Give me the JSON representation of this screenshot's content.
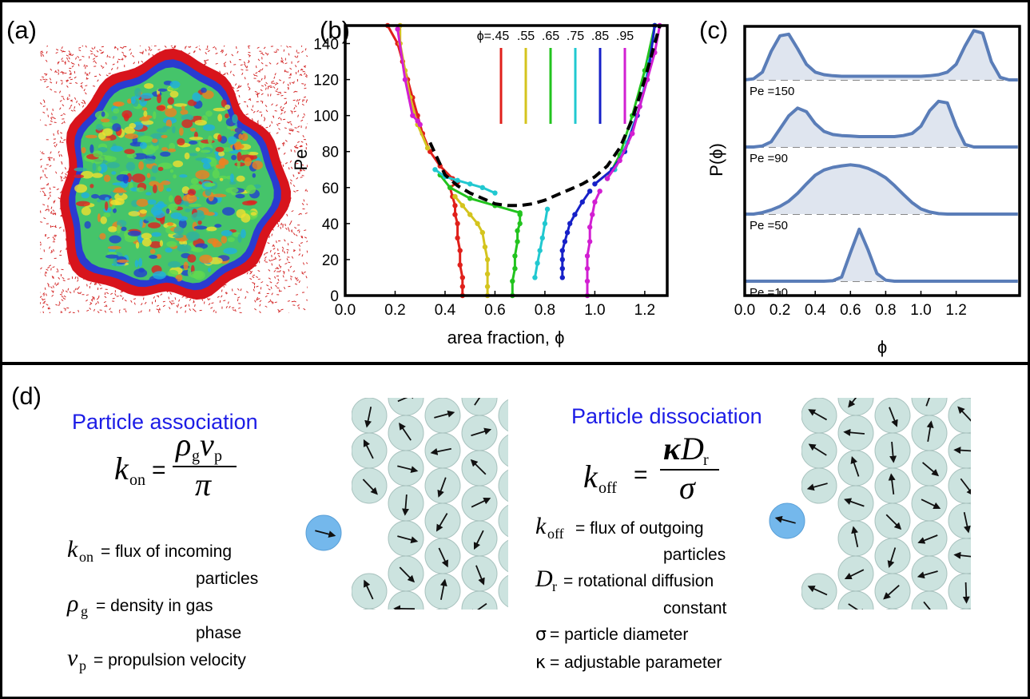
{
  "panels": {
    "a": {
      "label": "(a)"
    },
    "d": {
      "label": "(d)"
    }
  },
  "chart_data": [
    {
      "type": "line",
      "title": "(b)",
      "xlabel": "area fraction, ϕ",
      "ylabel": "Pe",
      "xlim": [
        0,
        1.29
      ],
      "ylim": [
        0,
        150
      ],
      "xticks": [
        {
          "value": 0,
          "label": "0.0"
        },
        0.2,
        0.4,
        0.6,
        0.8,
        {
          "value": 1,
          "label": "1.0"
        },
        1.2
      ],
      "yticks": [
        0,
        20,
        40,
        60,
        80,
        100,
        120,
        140
      ],
      "series": [
        {
          "name": "ϕ=.45",
          "color": "#e0201b",
          "x": [
            0.47,
            0.47,
            0.47,
            0.46,
            0.46,
            0.45,
            0.45,
            0.44,
            0.44,
            0.43,
            0.42,
            0.45,
            null,
            0.17,
            0.21,
            0.23,
            0.25,
            0.27,
            0.29,
            0.31,
            0.34,
            0.38,
            0.43
          ],
          "values": [
            0,
            5,
            10,
            17,
            25,
            32,
            40,
            45,
            50,
            55,
            60,
            63,
            null,
            150,
            140,
            130,
            120,
            110,
            100,
            90,
            80,
            72,
            65
          ]
        },
        {
          "name": ".55",
          "color": "#d4c41e",
          "x": [
            0.57,
            0.57,
            0.57,
            0.57,
            0.56,
            0.55,
            0.53,
            0.5,
            0.47,
            0.44,
            null,
            0.22,
            0.22,
            0.24,
            0.26,
            0.29,
            0.33
          ],
          "values": [
            0,
            5,
            12,
            20,
            27,
            35,
            40,
            45,
            50,
            55,
            null,
            150,
            140,
            125,
            110,
            95,
            82
          ]
        },
        {
          "name": ".65",
          "color": "#22c31e",
          "x": [
            0.67,
            0.67,
            0.68,
            0.68,
            0.69,
            0.69,
            0.7,
            0.7,
            0.7,
            0.6,
            0.5,
            0.42,
            0.38,
            null,
            1.05,
            1.1,
            1.15,
            1.2,
            1.24
          ],
          "values": [
            0,
            8,
            15,
            22,
            30,
            36,
            40,
            45,
            46,
            50,
            54,
            60,
            67,
            null,
            65,
            78,
            100,
            125,
            150
          ]
        },
        {
          "name": ".75",
          "color": "#21c8d0",
          "x": [
            0.76,
            0.77,
            0.78,
            0.79,
            0.8,
            0.81,
            null,
            0.6,
            0.55,
            0.5,
            0.45,
            0.4,
            0.36,
            null,
            1.08,
            1.13,
            1.18,
            1.22,
            1.24
          ],
          "values": [
            10,
            18,
            25,
            32,
            40,
            48,
            null,
            57,
            60,
            62,
            64,
            66,
            70,
            null,
            70,
            85,
            105,
            130,
            150
          ]
        },
        {
          "name": ".85",
          "color": "#1620c8",
          "x": [
            0.87,
            0.87,
            0.87,
            0.87,
            0.88,
            0.89,
            0.9,
            0.92,
            0.95,
            0.98,
            null,
            1.0,
            1.07,
            1.12,
            1.17,
            1.21,
            1.24
          ],
          "values": [
            10,
            15,
            20,
            25,
            30,
            35,
            40,
            45,
            52,
            58,
            null,
            62,
            70,
            80,
            100,
            120,
            150
          ]
        },
        {
          "name": ".95",
          "color": "#d21fd2",
          "x": [
            0.97,
            0.97,
            0.97,
            0.97,
            0.98,
            0.98,
            0.99,
            1.0,
            1.02,
            null,
            1.05,
            1.1,
            1.15,
            1.18,
            1.21,
            1.24,
            1.26,
            null,
            0.21,
            0.24,
            0.27,
            0.29,
            0.3
          ],
          "values": [
            0,
            8,
            15,
            22,
            30,
            38,
            45,
            52,
            58,
            null,
            65,
            75,
            90,
            105,
            120,
            135,
            150,
            null,
            148,
            120,
            100,
            97,
            95
          ]
        }
      ],
      "dashed_curve": {
        "color": "#000000",
        "x": [
          0.34,
          0.4,
          0.45,
          0.5,
          0.55,
          0.6,
          0.65,
          0.7,
          0.75,
          0.8,
          0.85,
          0.9,
          0.95,
          1.0,
          1.05,
          1.1,
          1.15,
          1.2,
          1.24,
          1.26
        ],
        "values": [
          85,
          67,
          61,
          57,
          54,
          51,
          50,
          50,
          51,
          53,
          56,
          59,
          62,
          66,
          72,
          82,
          98,
          120,
          140,
          150
        ]
      }
    },
    {
      "type": "area",
      "title": "(c)",
      "xlabel": "ϕ",
      "ylabel": "P(ϕ)",
      "color": "#5a7db8",
      "fill": "#dfe5ef",
      "xlim": [
        0,
        1.56
      ],
      "xticks": [
        {
          "value": 0,
          "label": "0.0"
        },
        0.2,
        0.4,
        0.6,
        0.8,
        {
          "value": 1,
          "label": "1.0"
        },
        1.2
      ],
      "x": [
        0,
        0.05,
        0.1,
        0.15,
        0.2,
        0.25,
        0.3,
        0.35,
        0.4,
        0.45,
        0.5,
        0.55,
        0.6,
        0.65,
        0.7,
        0.75,
        0.8,
        0.85,
        0.9,
        0.95,
        1.0,
        1.05,
        1.1,
        1.15,
        1.2,
        1.25,
        1.3,
        1.35,
        1.4,
        1.45,
        1.5,
        1.55
      ],
      "series": [
        {
          "name": "Pe =150",
          "values": [
            0,
            0.02,
            0.15,
            0.55,
            0.85,
            0.88,
            0.6,
            0.3,
            0.15,
            0.1,
            0.08,
            0.07,
            0.07,
            0.07,
            0.07,
            0.07,
            0.07,
            0.07,
            0.07,
            0.07,
            0.07,
            0.08,
            0.1,
            0.15,
            0.3,
            0.65,
            0.95,
            0.9,
            0.35,
            0.05,
            0,
            0
          ]
        },
        {
          "name": "Pe =90",
          "values": [
            0,
            0,
            0.02,
            0.1,
            0.35,
            0.6,
            0.75,
            0.68,
            0.45,
            0.3,
            0.24,
            0.22,
            0.21,
            0.2,
            0.2,
            0.2,
            0.2,
            0.2,
            0.22,
            0.26,
            0.4,
            0.7,
            0.88,
            0.85,
            0.4,
            0.05,
            0,
            0,
            0,
            0,
            0,
            0
          ]
        },
        {
          "name": "Pe =50",
          "values": [
            0,
            0,
            0.03,
            0.08,
            0.15,
            0.25,
            0.4,
            0.58,
            0.75,
            0.85,
            0.9,
            0.93,
            0.95,
            0.93,
            0.88,
            0.8,
            0.7,
            0.55,
            0.38,
            0.22,
            0.1,
            0.04,
            0.01,
            0,
            0,
            0,
            0,
            0,
            0,
            0,
            0,
            0
          ]
        },
        {
          "name": "Pe =10",
          "values": [
            0,
            0,
            0,
            0,
            0,
            0,
            0,
            0,
            0,
            0,
            0.01,
            0.08,
            0.55,
            1.0,
            0.6,
            0.15,
            0.02,
            0,
            0,
            0,
            0,
            0,
            0,
            0,
            0,
            0,
            0,
            0,
            0,
            0,
            0,
            0
          ]
        }
      ]
    }
  ],
  "panel_d": {
    "association": {
      "title": "Particle association",
      "formula": {
        "lhs": "k",
        "lhs_sub": "on",
        "eq": "=",
        "num": [
          {
            "sym": "ρ",
            "sub": "g"
          },
          {
            "sym": "v",
            "sub": "p"
          }
        ],
        "den": "π"
      },
      "definitions": [
        {
          "sym": "k",
          "sub": "on",
          "text": "= flux of incoming",
          "cont": "particles"
        },
        {
          "sym": "ρ",
          "sub": "g",
          "text": "= density in gas",
          "cont": "phase"
        },
        {
          "sym": "v",
          "sub": "p",
          "text": "= propulsion velocity"
        }
      ]
    },
    "dissociation": {
      "title": "Particle dissociation",
      "formula": {
        "lhs": "k",
        "lhs_sub": "off",
        "eq": "=",
        "num": [
          {
            "sym": "κ"
          },
          {
            "sym": "D",
            "sub": "r"
          }
        ],
        "den": "σ"
      },
      "definitions": [
        {
          "sym": "k",
          "sub": "off",
          "text": "= flux of outgoing",
          "cont": "particles"
        },
        {
          "sym": "D",
          "sub": "r",
          "text": "= rotational diffusion",
          "cont": "constant"
        },
        {
          "sym": "σ",
          "text": "= particle diameter"
        },
        {
          "sym": "κ",
          "text": "= adjustable parameter"
        }
      ]
    }
  }
}
